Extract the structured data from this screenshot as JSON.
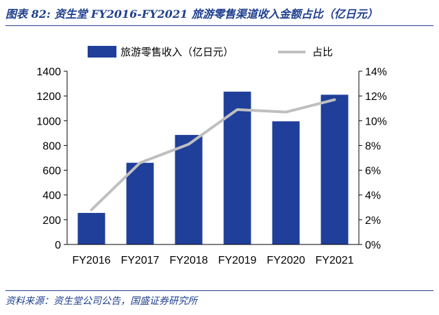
{
  "figure": {
    "title": "图表 82:  资生堂 FY2016-FY2021 旅游零售渠道收入金额占比（亿日元）",
    "source": "资料来源：资生堂公司公告，国盛证券研究所"
  },
  "colors": {
    "bar": "#1f3f9a",
    "line": "#bfbfbf",
    "title": "#1f3f8f",
    "axis": "#000000"
  },
  "chart_data": {
    "type": "bar",
    "categories": [
      "FY2016",
      "FY2017",
      "FY2018",
      "FY2019",
      "FY2020",
      "FY2021"
    ],
    "series": [
      {
        "name": "旅游零售收入（亿日元）",
        "type": "bar",
        "axis": "left",
        "values": [
          255,
          660,
          885,
          1235,
          995,
          1210
        ]
      },
      {
        "name": "占比",
        "type": "line",
        "axis": "right",
        "values": [
          2.8,
          6.6,
          8.1,
          10.9,
          10.7,
          11.7
        ]
      }
    ],
    "y_left": {
      "min": 0,
      "max": 1400,
      "step": 200,
      "ticks": [
        "0",
        "200",
        "400",
        "600",
        "800",
        "1000",
        "1200",
        "1400"
      ]
    },
    "y_right": {
      "min": 0,
      "max": 14,
      "step": 2,
      "ticks": [
        "0%",
        "2%",
        "4%",
        "6%",
        "8%",
        "10%",
        "12%",
        "14%"
      ]
    },
    "grid": false,
    "legend_position": "top"
  }
}
